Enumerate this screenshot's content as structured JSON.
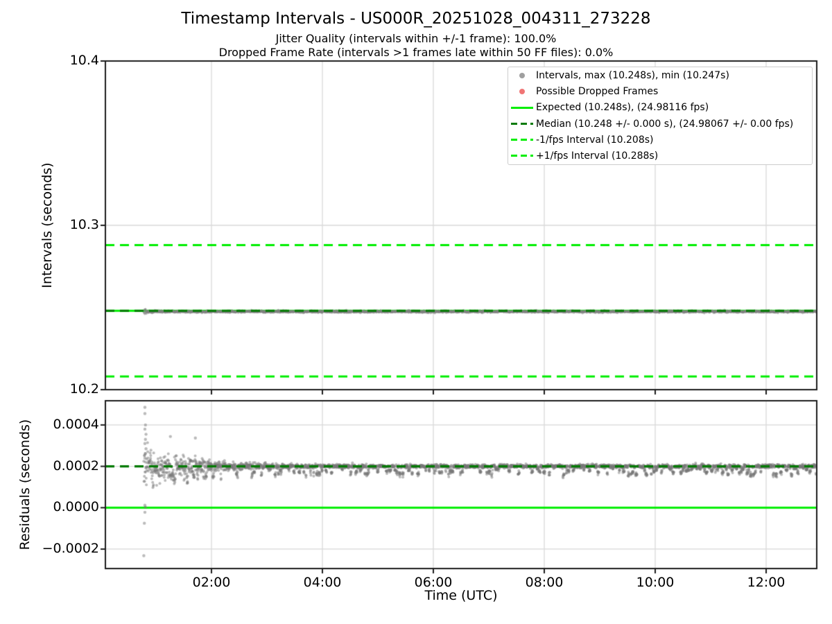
{
  "figure": {
    "title": "Timestamp Intervals - US000R_20251028_004311_273228",
    "subtitle1": "Jitter Quality (intervals within +/-1 frame): 100.0%",
    "subtitle2": "Dropped Frame Rate (intervals >1 frames late within 50 FF files): 0.0%",
    "background": "#ffffff"
  },
  "colors": {
    "lime": "#00ee00",
    "dark_green": "#047a04",
    "scatter_gray": "#808080",
    "dropped_red": "#f07575",
    "grid": "#d9d9d9",
    "spine": "#1c1c1c",
    "text": "#000000",
    "legend_border": "#cccccc",
    "legend_dot_gray": "#9f9f9f"
  },
  "legend": {
    "entries": [
      {
        "marker": "dot",
        "color_key": "legend_dot_gray",
        "name": "legend-entry-intervals",
        "label": "Intervals, max (10.248s), min (10.247s)"
      },
      {
        "marker": "dot",
        "color_key": "dropped_red",
        "name": "legend-entry-dropped",
        "label": "Possible Dropped Frames"
      },
      {
        "marker": "solid-line",
        "color_key": "lime",
        "name": "legend-entry-expected",
        "label": "Expected (10.248s), (24.98116 fps)"
      },
      {
        "marker": "dashed-line",
        "color_key": "dark_green",
        "name": "legend-entry-median",
        "label": "Median (10.248 +/- 0.000 s), (24.98067 +/- 0.00 fps)"
      },
      {
        "marker": "dashed-line",
        "color_key": "lime",
        "name": "legend-entry-minus-1fps",
        "label": "-1/fps Interval (10.208s)"
      },
      {
        "marker": "dashed-line",
        "color_key": "lime",
        "name": "legend-entry-plus-1fps",
        "label": "+1/fps Interval (10.288s)"
      }
    ]
  },
  "chart_data": [
    {
      "id": "intervals",
      "type": "scatter",
      "ylabel": "Intervals (seconds)",
      "ylim": [
        10.2,
        10.4
      ],
      "yticks": [
        {
          "value": 10.2,
          "label": "10.2"
        },
        {
          "value": 10.3,
          "label": "10.3"
        },
        {
          "value": 10.4,
          "label": "10.4"
        }
      ],
      "x_hours_range": [
        0.0875,
        12.9125
      ],
      "xticks": [
        {
          "hour": 2,
          "label": "02:00"
        },
        {
          "hour": 4,
          "label": "04:00"
        },
        {
          "hour": 6,
          "label": "06:00"
        },
        {
          "hour": 8,
          "label": "08:00"
        },
        {
          "hour": 10,
          "label": "10:00"
        },
        {
          "hour": 12,
          "label": "12:00"
        }
      ],
      "xtick_labels_visible": false,
      "grid": true,
      "series": {
        "name": "interval-scatter-band",
        "start_hour": 0.78,
        "end_hour": 12.9125,
        "center_s": 10.2475,
        "max_s": 10.248,
        "min_s": 10.247,
        "n_points": 3400,
        "sigma_s": 0.0003,
        "start_burst_scale": 2.5
      },
      "ref_lines": [
        {
          "name": "expected",
          "value": 10.248,
          "style": "solid",
          "color_key": "lime",
          "fps": 24.98116
        },
        {
          "name": "median",
          "value": 10.248,
          "style": "dashed",
          "color_key": "dark_green",
          "fps": 24.98067
        },
        {
          "name": "minus-1fps",
          "value": 10.208,
          "style": "dashed",
          "color_key": "lime"
        },
        {
          "name": "plus-1fps",
          "value": 10.288,
          "style": "dashed",
          "color_key": "lime"
        }
      ]
    },
    {
      "id": "residuals",
      "type": "scatter",
      "ylabel": "Residuals (seconds)",
      "xlabel": "Time (UTC)",
      "ylim": [
        -0.000294,
        0.000517
      ],
      "yticks": [
        {
          "value": -0.0002,
          "label": "−0.0002"
        },
        {
          "value": 0.0,
          "label": "0.0000"
        },
        {
          "value": 0.0002,
          "label": "0.0002"
        },
        {
          "value": 0.0004,
          "label": "0.0004"
        }
      ],
      "x_hours_range": [
        0.0875,
        12.9125
      ],
      "xticks": [
        {
          "hour": 2,
          "label": "02:00"
        },
        {
          "hour": 4,
          "label": "04:00"
        },
        {
          "hour": 6,
          "label": "06:00"
        },
        {
          "hour": 8,
          "label": "08:00"
        },
        {
          "hour": 10,
          "label": "10:00"
        },
        {
          "hour": 12,
          "label": "12:00"
        }
      ],
      "xtick_labels_visible": true,
      "grid": true,
      "ref_lines": [
        {
          "name": "zero-residual",
          "value": 0.0,
          "style": "solid",
          "color_key": "lime"
        },
        {
          "name": "median-residual",
          "value": 0.0002,
          "style": "dashed",
          "color_key": "dark_green"
        }
      ],
      "scatter": {
        "name": "residual-scatter",
        "n_points": 3400,
        "start_hour": 0.78,
        "end_hour": 12.9,
        "band_value": 0.0002,
        "initial_sigma": 4.2e-05,
        "decay_hours": 0.75,
        "steady_sigma": 4.2e-06,
        "initial_mean_offset": 8e-06,
        "skirt_prob": 0.055,
        "skirt_depth_range": [
          1.2e-05,
          4.2e-05
        ],
        "skirt_len_range": [
          3,
          10
        ]
      },
      "outliers": [
        {
          "hour": 0.8,
          "value": 0.000485
        },
        {
          "hour": 0.8,
          "value": 0.000455
        },
        {
          "hour": 0.81,
          "value": 0.0004
        },
        {
          "hour": 0.8,
          "value": 0.00038
        },
        {
          "hour": 0.82,
          "value": 0.000355
        },
        {
          "hour": 0.81,
          "value": 0.00033
        },
        {
          "hour": 0.8,
          "value": 0.00031
        },
        {
          "hour": 0.82,
          "value": 0.000285
        },
        {
          "hour": 0.81,
          "value": 0.000262
        },
        {
          "hour": 0.8,
          "value": 0.00024
        },
        {
          "hour": 1.26,
          "value": 0.000344
        },
        {
          "hour": 1.71,
          "value": 0.000337
        },
        {
          "hour": 0.8,
          "value": 1.2e-05
        },
        {
          "hour": 0.81,
          "value": 2e-06
        },
        {
          "hour": 0.8,
          "value": -2.2e-05
        },
        {
          "hour": 0.79,
          "value": -7.5e-05
        },
        {
          "hour": 0.78,
          "value": -0.000232
        }
      ]
    }
  ]
}
